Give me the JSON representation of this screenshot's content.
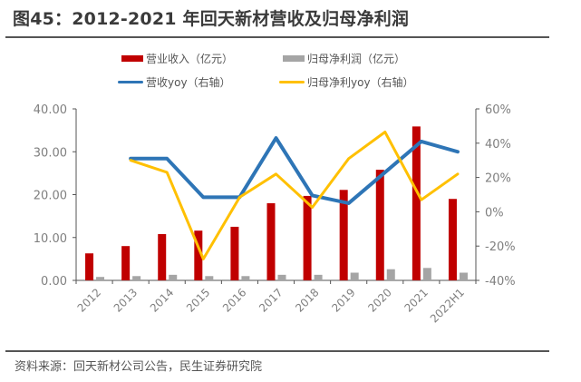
{
  "title": "图45：2012-2021 年回天新材营收及归母净利润",
  "source": "资料来源：回天新材公司公告，民生证券研究院",
  "legend": {
    "revenue": "营业收入（亿元）",
    "net_profit": "归母净利润（亿元）",
    "revenue_yoy": "营收yoy（右轴）",
    "net_profit_yoy": "归母净利yoy（右轴）"
  },
  "colors": {
    "revenue": "#c00000",
    "net_profit": "#a5a5a5",
    "revenue_yoy": "#2e75b6",
    "net_profit_yoy": "#ffc000"
  },
  "chart_data": {
    "type": "bar",
    "title": "2012-2021 年回天新材营收及归母净利润",
    "categories": [
      "2012",
      "2013",
      "2014",
      "2015",
      "2016",
      "2017",
      "2018",
      "2019",
      "2020",
      "2021",
      "2022H1"
    ],
    "series": [
      {
        "name": "营业收入（亿元）",
        "type": "bar",
        "axis": "left",
        "values": [
          6.3,
          8.0,
          10.8,
          11.6,
          12.5,
          18.0,
          19.7,
          21.1,
          25.8,
          35.9,
          19.0
        ]
      },
      {
        "name": "归母净利润（亿元）",
        "type": "bar",
        "axis": "left",
        "values": [
          0.8,
          1.0,
          1.3,
          1.0,
          1.0,
          1.3,
          1.3,
          1.8,
          2.6,
          2.9,
          1.8
        ]
      },
      {
        "name": "营收yoy（右轴）",
        "type": "line",
        "axis": "right",
        "values": [
          null,
          31,
          31,
          8.5,
          8.5,
          43,
          9.5,
          5,
          23,
          41,
          35
        ]
      },
      {
        "name": "归母净利yoy（右轴）",
        "type": "line",
        "axis": "right",
        "values": [
          null,
          30,
          23,
          -27.5,
          8.5,
          22,
          2.6,
          31,
          46.5,
          7,
          22
        ]
      }
    ],
    "left_axis": {
      "ylim": [
        0,
        40
      ],
      "ticks": [
        "0.00",
        "10.00",
        "20.00",
        "30.00",
        "40.00"
      ]
    },
    "right_axis": {
      "ylim": [
        -40,
        60
      ],
      "ticks": [
        "-40%",
        "-20%",
        "0%",
        "20%",
        "40%",
        "60%"
      ]
    },
    "xlabel": "",
    "ylabel": "",
    "grid": false,
    "legend_position": "top"
  }
}
